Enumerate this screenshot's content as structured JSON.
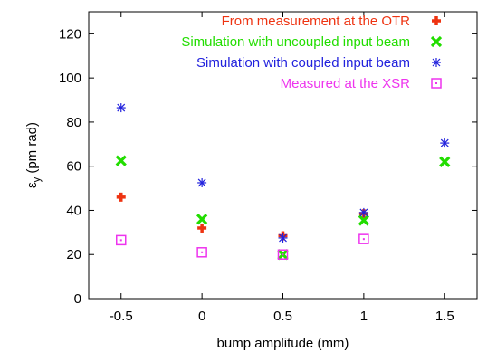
{
  "chart_data": {
    "type": "scatter",
    "title": "",
    "xlabel": "bump amplitude (mm)",
    "ylabel_symbol": "ε",
    "ylabel_subscript": "y",
    "ylabel_unit": " (pm rad)",
    "xlim": [
      -0.7,
      1.7
    ],
    "ylim": [
      0,
      130
    ],
    "xticks": [
      -0.5,
      0,
      0.5,
      1,
      1.5
    ],
    "xtick_labels": [
      "-0.5",
      "0",
      "0.5",
      "1",
      "1.5"
    ],
    "yticks": [
      0,
      20,
      40,
      60,
      80,
      100,
      120
    ],
    "ytick_labels": [
      "0",
      "20",
      "40",
      "60",
      "80",
      "100",
      "120"
    ],
    "grid": false,
    "legend_position": "top-right",
    "series": [
      {
        "name": "From measurement at the OTR",
        "color": "#ee3311",
        "marker": "plus-thick",
        "points": [
          [
            -0.5,
            46
          ],
          [
            0,
            32
          ],
          [
            0.5,
            28.5
          ],
          [
            1,
            38.5
          ]
        ]
      },
      {
        "name": "Simulation with uncoupled input beam",
        "color": "#22dd00",
        "marker": "x-thick",
        "points": [
          [
            -0.5,
            62.5
          ],
          [
            0,
            36
          ],
          [
            0.5,
            20
          ],
          [
            1,
            35.5
          ],
          [
            1.5,
            62
          ]
        ]
      },
      {
        "name": "Simulation with coupled input beam",
        "color": "#2222dd",
        "marker": "asterisk",
        "points": [
          [
            -0.5,
            86.5
          ],
          [
            0,
            52.5
          ],
          [
            0.5,
            27.5
          ],
          [
            1,
            39
          ],
          [
            1.5,
            70.5
          ]
        ]
      },
      {
        "name": "Measured at the XSR",
        "color": "#ee33ee",
        "marker": "square-dot",
        "points": [
          [
            -0.5,
            26.5
          ],
          [
            0,
            21
          ],
          [
            0.5,
            20
          ],
          [
            1,
            27
          ]
        ]
      }
    ]
  }
}
